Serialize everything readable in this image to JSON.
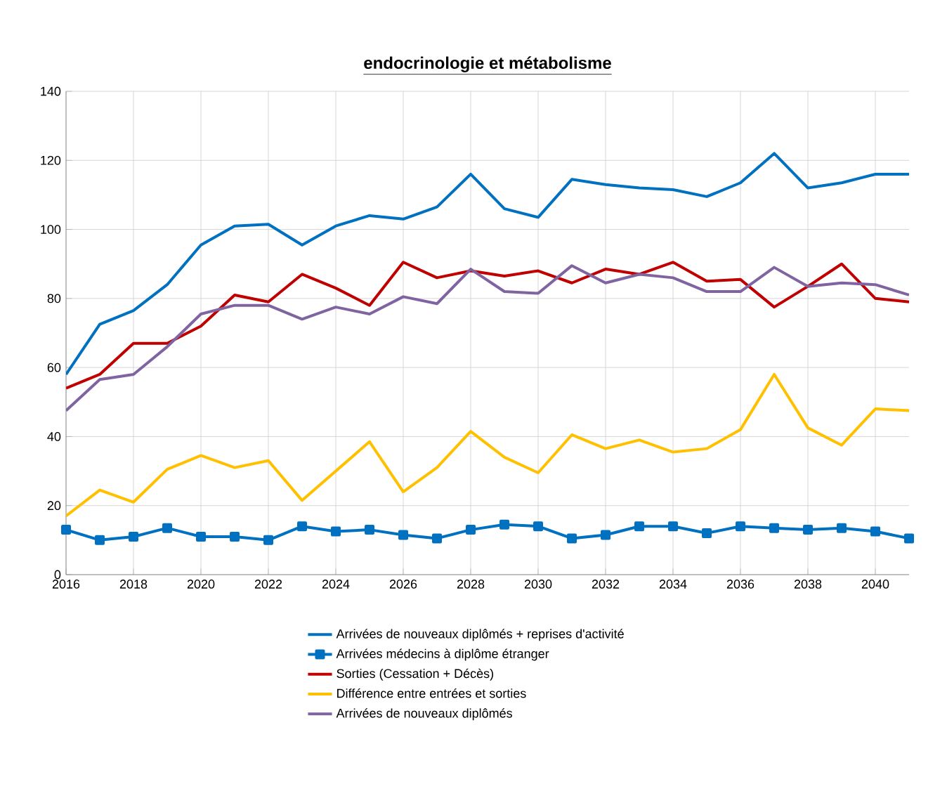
{
  "chart_data": {
    "type": "line",
    "title": "**endocrinologie et métabolisme**",
    "x": [
      2016,
      2017,
      2018,
      2019,
      2020,
      2021,
      2022,
      2023,
      2024,
      2025,
      2026,
      2027,
      2028,
      2029,
      2030,
      2031,
      2032,
      2033,
      2034,
      2035,
      2036,
      2037,
      2038,
      2039,
      2040,
      2041
    ],
    "xlim": [
      2016,
      2041
    ],
    "xticks": [
      2016,
      2018,
      2020,
      2022,
      2024,
      2026,
      2028,
      2030,
      2032,
      2034,
      2036,
      2038,
      2040
    ],
    "ylim": [
      0,
      140
    ],
    "yticks": [
      0,
      20,
      40,
      60,
      80,
      100,
      120,
      140
    ],
    "grid": true,
    "legend": "bottom",
    "series": [
      {
        "name": "Arrivées de nouveaux diplômés + reprises d'activité",
        "color": "#0070c0",
        "marker": "none",
        "values": [
          58,
          72.5,
          76.5,
          84,
          95.5,
          101,
          101.5,
          95.5,
          101,
          104,
          103,
          106.5,
          116,
          106,
          103.5,
          114.5,
          113,
          112,
          111.5,
          109.5,
          113.5,
          122,
          112,
          113.5,
          116,
          116
        ]
      },
      {
        "name": "Arrivées médecins à diplôme étranger",
        "color": "#0070c0",
        "marker": "square",
        "values": [
          13,
          10,
          11,
          13.5,
          11,
          11,
          10,
          14,
          12.5,
          13,
          11.5,
          10.5,
          13,
          14.5,
          14,
          10.5,
          11.5,
          14,
          14,
          12,
          14,
          13.5,
          13,
          13.5,
          12.5,
          10.5
        ]
      },
      {
        "name": "Sorties (Cessation + Décès)",
        "color": "#c00000",
        "marker": "none",
        "values": [
          54,
          58,
          67,
          67,
          72,
          81,
          79,
          87,
          83,
          78,
          90.5,
          86,
          88,
          86.5,
          88,
          84.5,
          88.5,
          87,
          90.5,
          85,
          85.5,
          77.5,
          83.5,
          90,
          80,
          79
        ]
      },
      {
        "name": "Différence entre entrées et sorties",
        "color": "#ffc000",
        "marker": "none",
        "values": [
          17,
          24.5,
          21,
          30.5,
          34.5,
          31,
          33,
          21.5,
          30,
          38.5,
          24,
          31,
          41.5,
          34,
          29.5,
          40.5,
          36.5,
          39,
          35.5,
          36.5,
          42,
          58,
          42.5,
          37.5,
          48,
          47.5
        ]
      },
      {
        "name": "Arrivées de nouveaux diplômés",
        "color": "#8064a2",
        "marker": "none",
        "values": [
          47.5,
          56.5,
          58,
          66,
          75.5,
          78,
          78,
          74,
          77.5,
          75.5,
          80.5,
          78.5,
          88.5,
          82,
          81.5,
          89.5,
          84.5,
          87,
          86,
          82,
          82,
          89,
          83.5,
          84.5,
          84,
          81
        ]
      }
    ]
  }
}
